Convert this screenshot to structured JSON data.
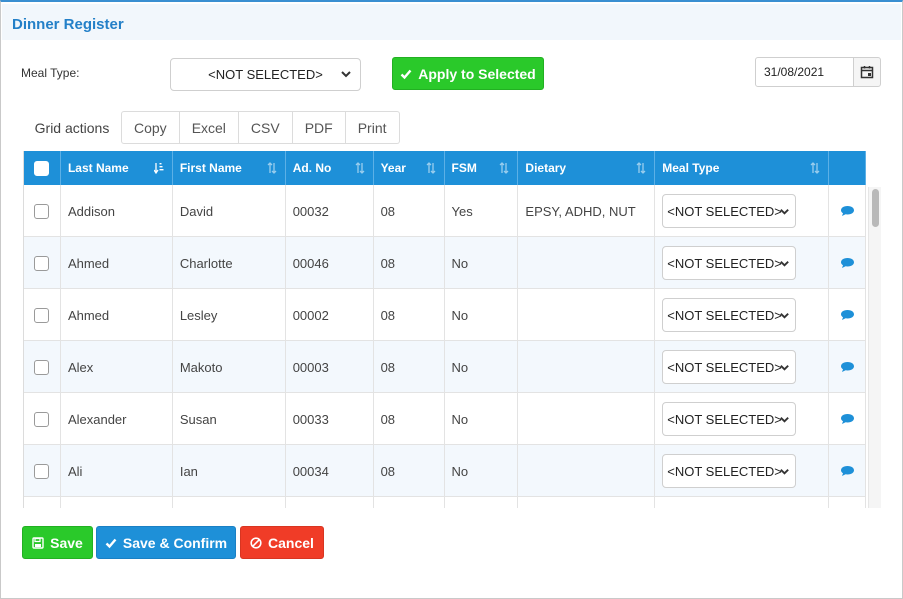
{
  "window": {
    "title": "Dinner Register"
  },
  "form": {
    "meal_type_label": "Meal Type:",
    "meal_type_value": "<NOT SELECTED>",
    "apply_label": "Apply to Selected",
    "date_value": "31/08/2021"
  },
  "grid_actions": {
    "label": "Grid actions",
    "buttons": [
      "Copy",
      "Excel",
      "CSV",
      "PDF",
      "Print"
    ]
  },
  "table": {
    "columns": [
      "",
      "Last Name",
      "First Name",
      "Ad. No",
      "Year",
      "FSM",
      "Dietary",
      "Meal Type",
      ""
    ],
    "rows": [
      {
        "last": "Addison",
        "first": "David",
        "adno": "00032",
        "year": "08",
        "fsm": "Yes",
        "dietary": "EPSY, ADHD, NUT",
        "meal": "<NOT SELECTED>"
      },
      {
        "last": "Ahmed",
        "first": "Charlotte",
        "adno": "00046",
        "year": "08",
        "fsm": "No",
        "dietary": "",
        "meal": "<NOT SELECTED>"
      },
      {
        "last": "Ahmed",
        "first": "Lesley",
        "adno": "00002",
        "year": "08",
        "fsm": "No",
        "dietary": "",
        "meal": "<NOT SELECTED>"
      },
      {
        "last": "Alex",
        "first": "Makoto",
        "adno": "00003",
        "year": "08",
        "fsm": "No",
        "dietary": "",
        "meal": "<NOT SELECTED>"
      },
      {
        "last": "Alexander",
        "first": "Susan",
        "adno": "00033",
        "year": "08",
        "fsm": "No",
        "dietary": "",
        "meal": "<NOT SELECTED>"
      },
      {
        "last": "Ali",
        "first": "Ian",
        "adno": "00034",
        "year": "08",
        "fsm": "No",
        "dietary": "",
        "meal": "<NOT SELECTED>"
      },
      {
        "last": "",
        "first": "",
        "adno": "",
        "year": "",
        "fsm": "",
        "dietary": "",
        "meal": ""
      }
    ]
  },
  "footer": {
    "save_label": "Save",
    "save_confirm_label": "Save & Confirm",
    "cancel_label": "Cancel"
  },
  "icons": {
    "sort": "sort-icon",
    "comment": "comment-icon",
    "calendar": "calendar-icon",
    "check": "check-icon",
    "floppy": "floppy-disk-icon",
    "ban": "ban-icon"
  },
  "colors": {
    "header_blue": "#1e90d8",
    "title_blue": "#2480c8",
    "green": "#2ac92a",
    "red": "#f03c27"
  }
}
